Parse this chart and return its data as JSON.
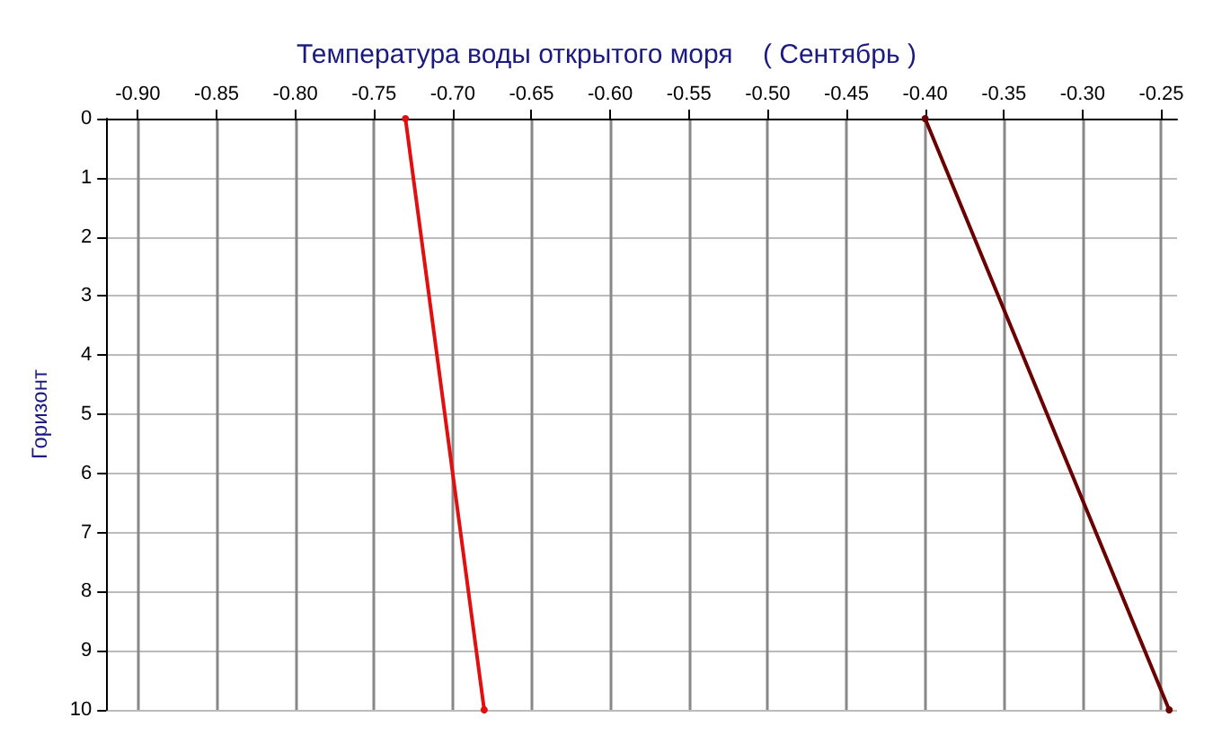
{
  "chart_data": {
    "type": "line",
    "title": "Температура воды открытого моря    ( Сентябрь )",
    "ylabel": "Горизонт",
    "series": [
      {
        "color": "#e01010",
        "x": [
          -0.73,
          -0.68
        ],
        "values": [
          0,
          10
        ]
      },
      {
        "color": "#6b0000",
        "x": [
          -0.4,
          -0.245
        ],
        "values": [
          0,
          10
        ]
      }
    ],
    "xlim": [
      -0.92,
      -0.24
    ],
    "xticks": [
      {
        "value": -0.9,
        "label": "-0.90"
      },
      {
        "value": -0.85,
        "label": "-0.85"
      },
      {
        "value": -0.8,
        "label": "-0.80"
      },
      {
        "value": -0.75,
        "label": "-0.75"
      },
      {
        "value": -0.7,
        "label": "-0.70"
      },
      {
        "value": -0.65,
        "label": "-0.65"
      },
      {
        "value": -0.6,
        "label": "-0.60"
      },
      {
        "value": -0.55,
        "label": "-0.55"
      },
      {
        "value": -0.5,
        "label": "-0.50"
      },
      {
        "value": -0.45,
        "label": "-0.45"
      },
      {
        "value": -0.4,
        "label": "-0.40"
      },
      {
        "value": -0.35,
        "label": "-0.35"
      },
      {
        "value": -0.3,
        "label": "-0.30"
      },
      {
        "value": -0.25,
        "label": "-0.25"
      }
    ],
    "ylim": [
      10,
      0
    ],
    "yticks": [
      0,
      1,
      2,
      3,
      4,
      5,
      6,
      7,
      8,
      9,
      10
    ],
    "grid": true,
    "marker": "circle",
    "line_style": "solid"
  }
}
